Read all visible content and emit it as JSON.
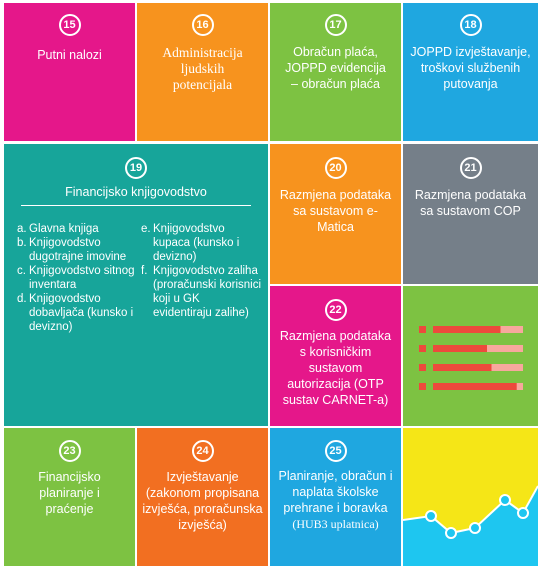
{
  "tiles": {
    "t15": {
      "num": "15",
      "label": "Putni nalozi",
      "color": "#e5178a"
    },
    "t16": {
      "num": "16",
      "label": "Administracija ljudskih potencijala",
      "color": "#f7931e"
    },
    "t17": {
      "num": "17",
      "label": "Obračun plaća, JOPPD evidencija – obračun plaća",
      "color": "#7dc242"
    },
    "t18": {
      "num": "18",
      "label": "JOPPD izvještavanje, troškovi službenih putovanja",
      "color": "#1fa7e0"
    },
    "t19": {
      "num": "19",
      "label": "Financijsko knjigovodstvo",
      "color": "#17a59a",
      "items_left": [
        {
          "key": "a.",
          "text": "Glavna knjiga"
        },
        {
          "key": "b.",
          "text": "Knjigovodstvo dugotrajne imovine"
        },
        {
          "key": "c.",
          "text": "Knjigovodstvo sitnog inventara"
        },
        {
          "key": "d.",
          "text": "Knjigovodstvo dobavljača (kunsko i devizno)"
        }
      ],
      "items_right": [
        {
          "key": "e.",
          "text": "Knjigovodstvo kupaca (kunsko i devizno)"
        },
        {
          "key": "f.",
          "text": "Knjigovodstvo zaliha (proračunski korisnici koji u GK evidentiraju zalihe)"
        }
      ]
    },
    "t20": {
      "num": "20",
      "label": "Razmjena podataka sa sustavom e-Matica",
      "color": "#f7931e"
    },
    "t21": {
      "num": "21",
      "label": "Razmjena podataka sa sustavom COP",
      "color": "#757f89"
    },
    "t22": {
      "num": "22",
      "label": "Razmjena podataka s korisničkim sustavom autorizacija (OTP sustav CARNET-a)",
      "color": "#e5178a"
    },
    "t23": {
      "num": "23",
      "label": "Financijsko planiranje i praćenje",
      "color": "#7dc242"
    },
    "t24": {
      "num": "24",
      "label": "Izvještavanje (zakonom propisana izvješća, proračunska izvješća)",
      "color": "#f26f21"
    },
    "t25": {
      "num": "25",
      "label": "Planiranje, obračun i naplata školske prehrane i boravka",
      "sublabel": "(HUB3 uplatnica)",
      "color": "#1fa7e0"
    }
  },
  "decor": {
    "list_tile_bg": "#7dc242",
    "bar_color": "#ed4a3c",
    "bar_light_color": "#f7a89d",
    "bars": [
      0.75,
      0.6,
      0.65,
      0.93
    ],
    "chart_tile_bg": "#1ec6f0",
    "chart_area_color": "#f5e617",
    "chart_line_color": "#ffffff"
  }
}
